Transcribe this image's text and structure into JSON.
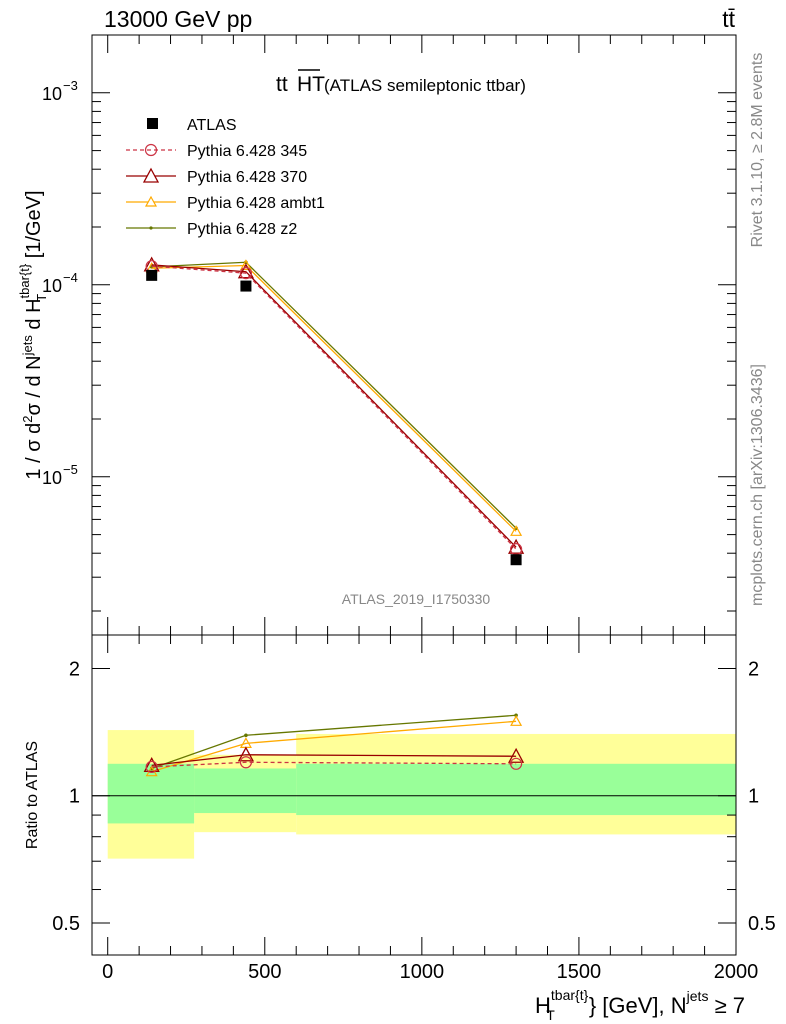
{
  "header": {
    "energy_label": "13000 GeV pp",
    "process_label": "tt̄"
  },
  "side": {
    "rivet_label": "Rivet 3.1.10, ≥ 2.8M events",
    "mcplots_label": "mcplots.cern.ch [arXiv:1306.3436]"
  },
  "colors": {
    "atlas": "#000000",
    "p345": "#cc3344",
    "p370": "#990000",
    "ambt1": "#ffaa00",
    "z2": "#667700",
    "band_inner": "#99ff99",
    "band_outer": "#ffff99"
  },
  "chart_data": [
    {
      "type": "line",
      "title_main": "tt",
      "title_bar": "HT",
      "title_rest": " (ATLAS semileptonic ttbar)",
      "watermark": "ATLAS_2019_I1750330",
      "ylabel": "1 / σ d²σ / d N^jets d H_T^tbar{t} [1/GeV]",
      "yscale": "log",
      "ylim": [
        1.5e-06,
        0.002
      ],
      "xlim": [
        -50,
        2000
      ],
      "ytick_labels": [
        {
          "base": "10",
          "exp": "−3",
          "value": 0.001
        },
        {
          "base": "10",
          "exp": "−4",
          "value": 0.0001
        },
        {
          "base": "10",
          "exp": "−5",
          "value": 1e-05
        }
      ],
      "series": [
        {
          "name": "ATLAS",
          "key": "atlas",
          "marker": "square",
          "x": [
            140,
            440,
            1300
          ],
          "y": [
            0.000112,
            9.85e-05,
            3.7e-06
          ]
        },
        {
          "name": "Pythia 6.428 345",
          "key": "p345",
          "marker": "circle",
          "dashed": true,
          "x": [
            140,
            440,
            1300
          ],
          "y": [
            0.000125,
            0.000115,
            4.2e-06
          ]
        },
        {
          "name": "Pythia 6.428 370",
          "key": "p370",
          "marker": "triangle",
          "x": [
            140,
            440,
            1300
          ],
          "y": [
            0.000127,
            0.000117,
            4.3e-06
          ]
        },
        {
          "name": "Pythia 6.428 ambt1",
          "key": "ambt1",
          "marker": "triangle-small",
          "x": [
            140,
            440,
            1300
          ],
          "y": [
            0.000122,
            0.000126,
            5.2e-06
          ]
        },
        {
          "name": "Pythia 6.428 z2",
          "key": "z2",
          "marker": "dot",
          "x": [
            140,
            440,
            1300
          ],
          "y": [
            0.000124,
            0.000131,
            5.4e-06
          ]
        }
      ]
    },
    {
      "type": "line",
      "ylabel": "Ratio to ATLAS",
      "yscale": "log",
      "ylim": [
        0.42,
        2.4
      ],
      "xlim": [
        -50,
        2000
      ],
      "ytick_labels": [
        "2",
        "1",
        "0.5"
      ],
      "ytick_values": [
        2,
        1,
        0.5
      ],
      "xlabel": "H_T^tbar{t} [GeV], N^jets ≥ 7",
      "xtick_labels": [
        "0",
        "500",
        "1000",
        "1500",
        "2000"
      ],
      "xtick_values": [
        0,
        500,
        1000,
        1500,
        2000
      ],
      "bands": [
        {
          "x0": 0,
          "x1": 275,
          "inner": [
            0.86,
            1.19
          ],
          "outer": [
            0.71,
            1.43
          ]
        },
        {
          "x0": 275,
          "x1": 600,
          "inner": [
            0.91,
            1.16
          ],
          "outer": [
            0.82,
            1.25
          ]
        },
        {
          "x0": 600,
          "x1": 2000,
          "inner": [
            0.9,
            1.19
          ],
          "outer": [
            0.81,
            1.4
          ]
        }
      ],
      "series": [
        {
          "name": "Pythia 6.428 345",
          "key": "p345",
          "marker": "circle",
          "dashed": true,
          "x": [
            140,
            440,
            1300
          ],
          "y": [
            1.17,
            1.2,
            1.19
          ]
        },
        {
          "name": "Pythia 6.428 370",
          "key": "p370",
          "marker": "triangle",
          "x": [
            140,
            440,
            1300
          ],
          "y": [
            1.18,
            1.25,
            1.24
          ]
        },
        {
          "name": "Pythia 6.428 ambt1",
          "key": "ambt1",
          "marker": "triangle-small",
          "x": [
            140,
            440,
            1300
          ],
          "y": [
            1.14,
            1.33,
            1.5
          ]
        },
        {
          "name": "Pythia 6.428 z2",
          "key": "z2",
          "marker": "dot",
          "x": [
            140,
            440,
            1300
          ],
          "y": [
            1.16,
            1.39,
            1.55
          ]
        }
      ]
    }
  ]
}
